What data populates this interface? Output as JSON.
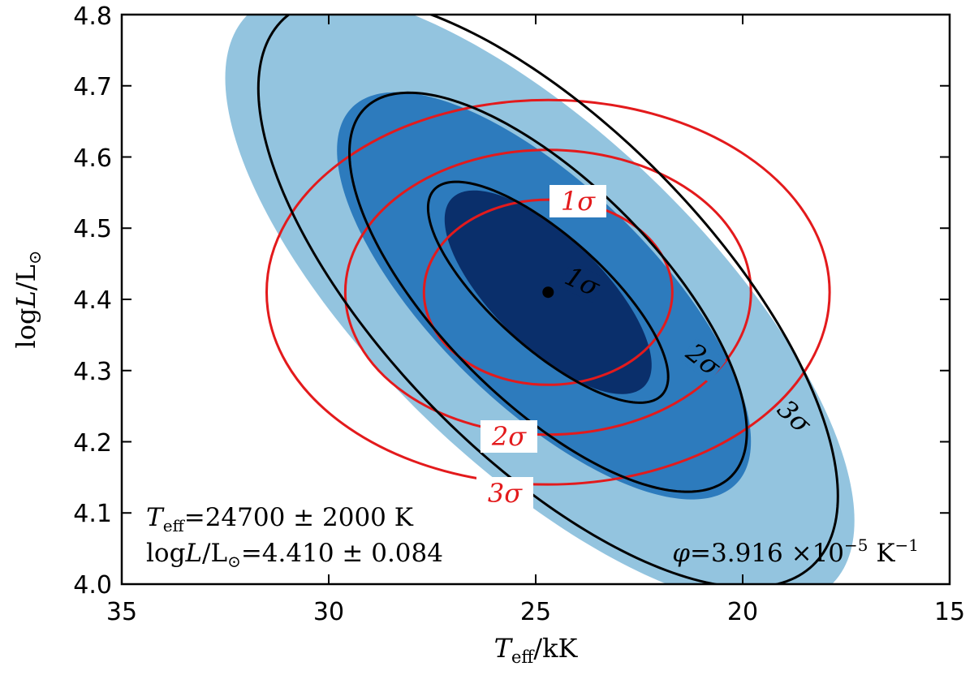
{
  "chart_data": {
    "type": "contour",
    "x_axis": {
      "label_symbol": "T",
      "label_sub": "eff",
      "label_rest": "/kK",
      "range": [
        35,
        15
      ],
      "reversed": true,
      "ticks": [
        35,
        30,
        25,
        20,
        15
      ],
      "tick_labels": [
        "35",
        "30",
        "25",
        "20",
        "15"
      ]
    },
    "y_axis": {
      "label_prefix": "log",
      "label_symbol": "L",
      "label_rest": "/L",
      "label_sub": "⊙",
      "range": [
        4.0,
        4.8
      ],
      "ticks": [
        4.0,
        4.1,
        4.2,
        4.3,
        4.4,
        4.5,
        4.6,
        4.7,
        4.8
      ],
      "tick_labels": [
        "4.0",
        "4.1",
        "4.2",
        "4.3",
        "4.4",
        "4.5",
        "4.6",
        "4.7",
        "4.8"
      ]
    },
    "best_fit": {
      "teff_kK": 24.7,
      "logL": 4.41
    },
    "filled_contours": [
      {
        "level": "3σ",
        "color": "#93c4df",
        "half_width_kK": 7.6,
        "half_height_logL": 0.3,
        "slope_logL_per_kK": 0.0409,
        "center_kK": 24.7,
        "center_logL": 4.41,
        "offset_kK": 0.2,
        "offset_logL": -0.01
      },
      {
        "level": "2σ",
        "color": "#2d7bbd",
        "half_width_kK": 5.0,
        "half_height_logL": 0.2,
        "slope_logL_per_kK": 0.0409,
        "center_kK": 24.7,
        "center_logL": 4.41,
        "offset_kK": 0.1,
        "offset_logL": -0.005
      },
      {
        "level": "1σ",
        "color": "#0a2f6b",
        "half_width_kK": 2.5,
        "half_height_logL": 0.1,
        "slope_logL_per_kK": 0.0409,
        "center_kK": 24.7,
        "center_logL": 4.41,
        "offset_kK": 0.0,
        "offset_logL": 0.0
      }
    ],
    "black_contours": [
      {
        "level": "3σ",
        "half_width_kK": 7.0,
        "half_height_logL": 0.3,
        "slope_logL_per_kK": 0.0409,
        "center_kK": 24.7,
        "center_logL": 4.41
      },
      {
        "level": "2σ",
        "half_width_kK": 4.8,
        "half_height_logL": 0.2,
        "slope_logL_per_kK": 0.0409,
        "center_kK": 24.7,
        "center_logL": 4.41
      },
      {
        "level": "1σ",
        "half_width_kK": 2.9,
        "half_height_logL": 0.1,
        "slope_logL_per_kK": 0.0409,
        "center_kK": 24.7,
        "center_logL": 4.41
      }
    ],
    "red_contours": [
      {
        "level": "1σ",
        "radius_teff_kK": 3.0,
        "radius_logL": 0.13
      },
      {
        "level": "2σ",
        "radius_teff_kK": 4.9,
        "radius_logL": 0.2
      },
      {
        "level": "3σ",
        "radius_teff_kK": 6.8,
        "radius_logL": 0.27
      }
    ],
    "contour_labels_black": [
      "1σ",
      "2σ",
      "3σ"
    ],
    "contour_labels_red": [
      "1σ",
      "2σ",
      "3σ"
    ],
    "annotations": {
      "teff_symbol": "T",
      "teff_sub": "eff",
      "teff_value": "=24700 ± 2000  K",
      "logl_prefix": "log",
      "logl_symbol": "L",
      "logl_rest": "/L",
      "logl_sub": "⊙",
      "logl_value": "=4.410 ± 0.084",
      "phi_symbol": "φ",
      "phi_value": "=3.916 ×10",
      "phi_exp": "−5",
      "phi_unit": "  K",
      "phi_unit_exp": "−1"
    },
    "colors": {
      "red": "#e31a1c",
      "black": "#000000"
    }
  }
}
